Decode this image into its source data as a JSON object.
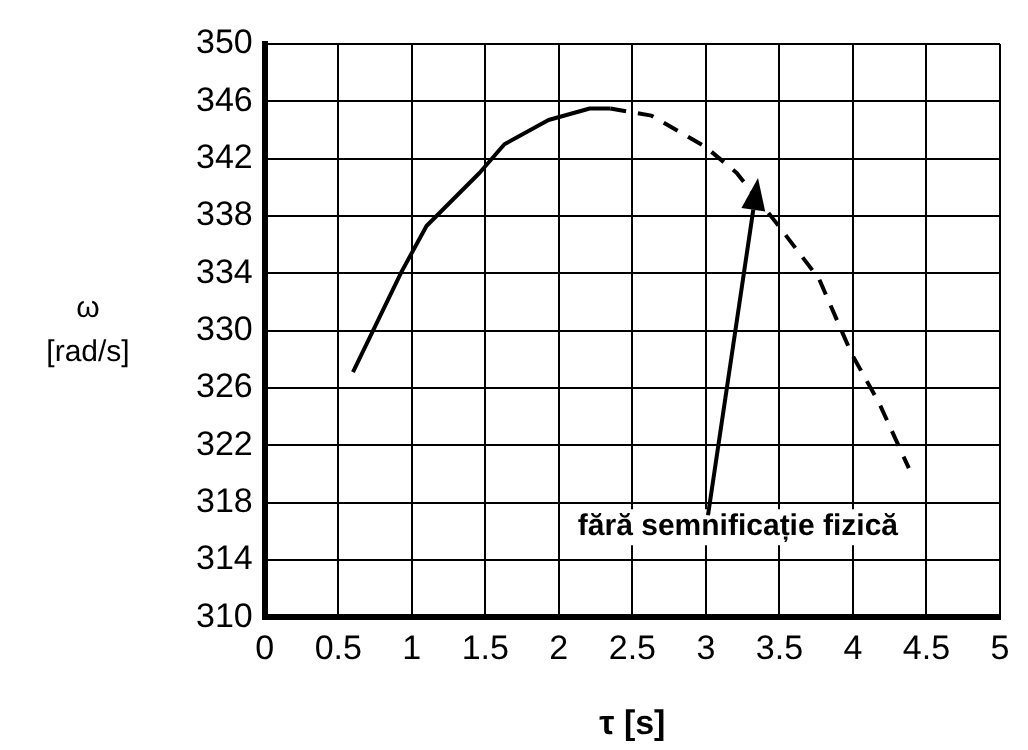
{
  "chart_data": {
    "type": "line",
    "xlabel": "τ [s]",
    "ylabel": "ω [rad/s]",
    "xlim": [
      0,
      5
    ],
    "xticks": [
      0,
      0.5,
      1,
      1.5,
      2,
      2.5,
      3,
      3.5,
      4,
      4.5,
      5
    ],
    "ylim": [
      310,
      350
    ],
    "yticks": [
      310,
      314,
      318,
      322,
      326,
      330,
      334,
      338,
      342,
      346,
      350
    ],
    "grid": true,
    "legend": false,
    "marker": "none",
    "series": [
      {
        "color": "#000000",
        "line_style": "solid",
        "x": [
          0.6,
          0.93,
          1.1,
          1.46,
          1.63,
          1.93,
          2.21,
          2.35
        ],
        "values": [
          327.1,
          334.1,
          337.3,
          341.0,
          343.0,
          344.7,
          345.5,
          345.5
        ]
      },
      {
        "color": "#000000",
        "line_style": "dashed",
        "x": [
          2.35,
          2.63,
          3.0,
          3.21,
          3.48,
          3.77,
          3.99,
          4.18,
          4.38
        ],
        "values": [
          345.5,
          345.0,
          342.8,
          341.0,
          337.5,
          333.6,
          328.4,
          324.9,
          320.4
        ]
      }
    ],
    "annotations": [
      "fără semnificație fizică"
    ]
  }
}
